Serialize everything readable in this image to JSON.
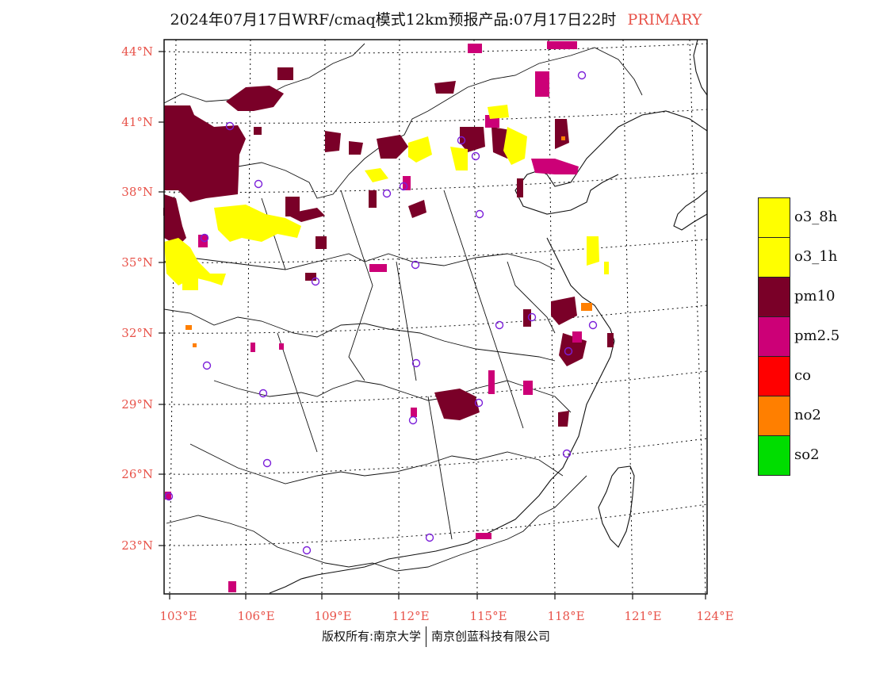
{
  "title": {
    "main": "2024年07月17日WRF/cmaq模式12km预报产品:07月17日22时",
    "tag": "PRIMARY"
  },
  "map": {
    "lat_labels": [
      "44°N",
      "41°N",
      "38°N",
      "35°N",
      "32°N",
      "29°N",
      "26°N",
      "23°N"
    ],
    "lon_labels": [
      "103°E",
      "106°E",
      "109°E",
      "112°E",
      "115°E",
      "118°E",
      "121°E",
      "124°E"
    ]
  },
  "legend": {
    "items": [
      {
        "label": "o3_8h",
        "color": "#ffff00"
      },
      {
        "label": "o3_1h",
        "color": "#ffff00"
      },
      {
        "label": "pm10",
        "color": "#7a0028"
      },
      {
        "label": "pm2.5",
        "color": "#cc0077"
      },
      {
        "label": "co",
        "color": "#ff0000"
      },
      {
        "label": "no2",
        "color": "#ff7f00"
      },
      {
        "label": "so2",
        "color": "#00dd00"
      }
    ]
  },
  "footer": {
    "left": "版权所有:南京大学",
    "right": "南京创蓝科技有限公司"
  },
  "colors": {
    "o3": "#ffff00",
    "pm10": "#7a0028",
    "pm25": "#cc0077",
    "no2": "#ff7f00",
    "station": "#7b1fd9",
    "axis_label": "#e8534a"
  }
}
